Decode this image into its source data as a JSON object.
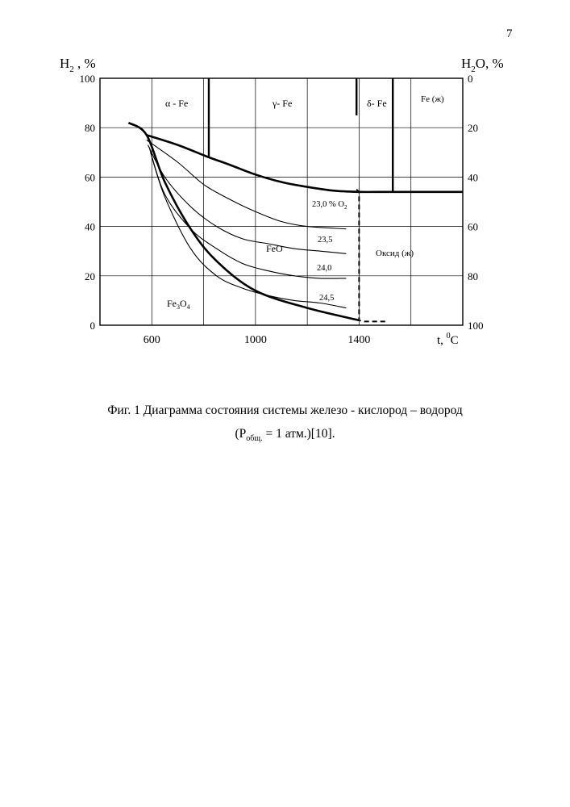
{
  "page_number": "7",
  "caption": {
    "line1": "Фиг. 1 Диаграмма состояния системы железо - кислород – водород",
    "line2_open": "(Р",
    "line2_sub": "общ.",
    "line2_close": " = 1 атм.)[10]."
  },
  "chart_data": {
    "type": "line",
    "left_axis": {
      "label": "H",
      "label_sub": "2",
      "label_suffix": " , %",
      "range": [
        0,
        100
      ],
      "ticks": [
        "0",
        "20",
        "40",
        "60",
        "80",
        "100"
      ]
    },
    "right_axis": {
      "label": "H",
      "label_sub": "2",
      "label_suffix": "O, %",
      "range": [
        0,
        100
      ],
      "inverted": true,
      "ticks": [
        "0",
        "20",
        "40",
        "60",
        "80",
        "100"
      ]
    },
    "x_axis": {
      "label": "t, ",
      "label_sup": "0",
      "label_suffix": "C",
      "range": [
        400,
        1800
      ],
      "ticks": [
        "600",
        "1000",
        "1400"
      ]
    },
    "grid": true,
    "phase_labels": {
      "alpha": "α - Fe",
      "gamma": "γ- Fe",
      "delta": "δ- Fe",
      "fe_liquid": "Fe (ж)",
      "feo": "FeO",
      "fe3o4_main": "Fe",
      "fe3o4_sub1": "3",
      "fe3o4_mid": "O",
      "fe3o4_sub2": "4",
      "oxide_liquid": "Оксид (ж)"
    },
    "isobar_labels": {
      "o23_0": "23,0 % O",
      "o23_0_sub": "2",
      "o23_5": "23,5",
      "o24_0": "24,0",
      "o24_5": "24,5"
    },
    "series": [
      {
        "id": "fe_feo_boundary",
        "bold": true,
        "x": [
          580,
          700,
          820,
          900,
          1000,
          1100,
          1200,
          1300,
          1400,
          1530,
          1800
        ],
        "y": [
          77,
          73,
          68,
          65,
          61,
          58,
          56,
          54.5,
          54,
          54,
          54
        ]
      },
      {
        "id": "feo_fe3o4_boundary",
        "bold": true,
        "x": [
          510,
          580,
          650,
          750,
          850,
          1000,
          1200,
          1400
        ],
        "y": [
          82,
          77,
          58,
          39,
          26,
          14,
          7,
          2
        ]
      },
      {
        "id": "iso_23_0",
        "x": [
          580,
          700,
          800,
          900,
          1000,
          1100,
          1200,
          1350
        ],
        "y": [
          75,
          66,
          57,
          51,
          46,
          42,
          40,
          39
        ]
      },
      {
        "id": "iso_23_5",
        "x": [
          585,
          650,
          750,
          850,
          950,
          1050,
          1150,
          1250,
          1350
        ],
        "y": [
          73,
          60,
          48,
          40,
          35,
          33,
          31,
          30,
          29
        ]
      },
      {
        "id": "iso_24_0",
        "x": [
          590,
          650,
          750,
          850,
          950,
          1050,
          1150,
          1250,
          1350
        ],
        "y": [
          72,
          53,
          39,
          31,
          25,
          22,
          20,
          19,
          19
        ]
      },
      {
        "id": "iso_24_5",
        "x": [
          595,
          650,
          750,
          850,
          950,
          1050,
          1150,
          1250,
          1350
        ],
        "y": [
          70,
          52,
          31,
          20,
          15,
          12,
          10,
          9,
          7
        ]
      }
    ],
    "dashed_boundaries": [
      {
        "id": "liquid_oxide_boundary",
        "x": [
          1390,
          1400,
          1400,
          1420,
          1510
        ],
        "y": [
          55,
          54,
          2,
          1.5,
          1.5
        ]
      }
    ],
    "phase_lines": [
      {
        "id": "alpha_gamma",
        "x": 820,
        "y_from": 68,
        "y_to": 100
      },
      {
        "id": "gamma_delta",
        "x": 1390,
        "y_from": 85,
        "y_to": 100
      },
      {
        "id": "delta_liquid",
        "x": 1530,
        "y_from": 54,
        "y_to": 100
      }
    ]
  }
}
